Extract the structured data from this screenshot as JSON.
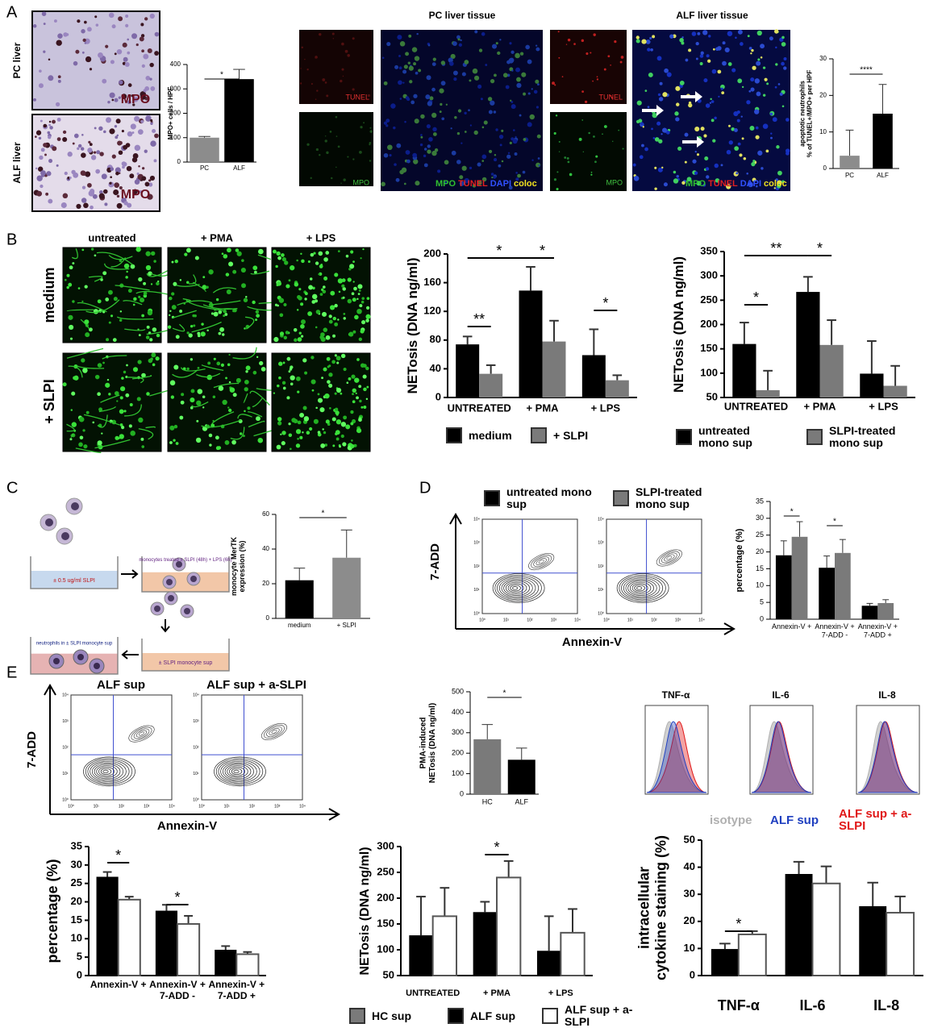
{
  "panels": [
    "A",
    "B",
    "C",
    "D",
    "E"
  ],
  "images": {
    "pc_liver": "PC liver",
    "alf_liver": "ALF liver",
    "mpo": "MPO",
    "pc_tissue": "PC liver tissue",
    "alf_tissue": "ALF liver tissue",
    "tunel": "TUNEL",
    "mpo_stain": "MPO",
    "merge": [
      "MPO",
      "TUNEL",
      "DAPI",
      "coloc"
    ],
    "b_cols": [
      "untreated",
      "+ PMA",
      "+ LPS"
    ],
    "b_rows": [
      "medium",
      "+ SLPI"
    ]
  },
  "diagram": {
    "step1": "± 0.5 ug/ml SLPI",
    "step2": "monocytes treated ± SLPI (48h) + LPS (6h)",
    "step3": "± SLPI monocyte sup",
    "step4": "neutrophils in ± SLPI monocyte sup"
  },
  "flow": {
    "x_label": "Annexin-V",
    "y_label": "7-ADD",
    "ticks": [
      "10⁰",
      "10¹",
      "10²",
      "10³",
      "10⁴"
    ],
    "e_titles": [
      "ALF sup",
      "ALF sup + a-SLPI"
    ]
  },
  "histograms": {
    "titles": [
      "TNF-α",
      "IL-6",
      "IL-8"
    ],
    "legend": [
      {
        "name": "isotype",
        "color": "#b0b0b0"
      },
      {
        "name": "ALF sup",
        "color": "#2040c0"
      },
      {
        "name": "ALF sup + a-SLPI",
        "color": "#e01818"
      }
    ]
  },
  "legend_extra": {
    "name": "HC sup",
    "color": "#7a7a7a"
  },
  "chart_data": [
    {
      "type": "bar",
      "y_label": "MPO+ cells / HPF",
      "categories": [
        "PC",
        "ALF"
      ],
      "values": [
        100,
        340
      ],
      "errors": [
        5,
        40
      ],
      "colors": [
        "#8c8c8c",
        "#000000"
      ],
      "ylim": [
        0,
        400
      ],
      "yticks": [
        0,
        100,
        200,
        300,
        400
      ],
      "annotations": [
        "*"
      ]
    },
    {
      "type": "bar",
      "y_label": [
        "apoptotic neutrophils",
        "% of TUNEL+/MPO+ per HPF"
      ],
      "categories": [
        "PC",
        "ALF"
      ],
      "values": [
        3.5,
        15
      ],
      "errors": [
        7,
        8
      ],
      "colors": [
        "#8c8c8c",
        "#000000"
      ],
      "ylim": [
        0,
        30
      ],
      "yticks": [
        0,
        10,
        20,
        30
      ],
      "annotations": [
        "****"
      ]
    },
    {
      "type": "bar",
      "y_label": "NETosis (DNA ng/ml)",
      "categories": [
        "UNTREATED",
        "+ PMA",
        "+ LPS"
      ],
      "series": [
        {
          "name": "medium",
          "color": "#000000",
          "values": [
            74,
            149,
            59
          ],
          "errors": [
            11,
            33,
            36
          ]
        },
        {
          "name": "+ SLPI",
          "color": "#7a7a7a",
          "values": [
            33,
            78,
            24
          ],
          "errors": [
            12,
            29,
            7
          ]
        }
      ],
      "ylim": [
        0,
        200
      ],
      "yticks": [
        0,
        40,
        80,
        120,
        160,
        200
      ],
      "annotations": [
        "**",
        "*",
        "*",
        "*"
      ]
    },
    {
      "type": "bar",
      "y_label": "NETosis (DNA ng/ml)",
      "categories": [
        "UNTREATED",
        "+ PMA",
        "+ LPS"
      ],
      "series": [
        {
          "name": "untreated mono sup",
          "color": "#000000",
          "values": [
            160,
            267,
            99
          ],
          "errors": [
            44,
            31,
            67
          ]
        },
        {
          "name": "SLPI-treated mono sup",
          "color": "#7a7a7a",
          "values": [
            65,
            158,
            74
          ],
          "errors": [
            40,
            51,
            41
          ]
        }
      ],
      "ylim": [
        50,
        350
      ],
      "yticks": [
        50,
        100,
        150,
        200,
        250,
        300,
        350
      ],
      "annotations": [
        "*",
        "**",
        "*"
      ]
    },
    {
      "type": "bar",
      "y_label": [
        "monocyte MerTK",
        "expression (%)"
      ],
      "categories": [
        "medium",
        "+ SLPI"
      ],
      "values": [
        22,
        35
      ],
      "errors": [
        7,
        16
      ],
      "colors": [
        "#000000",
        "#8c8c8c"
      ],
      "ylim": [
        0,
        60
      ],
      "yticks": [
        0,
        20,
        40,
        60
      ],
      "annotations": [
        "*"
      ]
    },
    {
      "type": "bar",
      "y_label": "percentage (%)",
      "categories": [
        [
          "Annexin-V +"
        ],
        [
          "Annexin-V +",
          "7-ADD -"
        ],
        [
          "Annexin-V +",
          "7-ADD +"
        ]
      ],
      "series": [
        {
          "name": "untreated mono sup",
          "color": "#000000",
          "values": [
            19,
            15.3,
            4
          ],
          "errors": [
            4.3,
            3.5,
            0.7
          ]
        },
        {
          "name": "SLPI-treated mono sup",
          "color": "#7a7a7a",
          "values": [
            24.5,
            19.7,
            4.8
          ],
          "errors": [
            4.5,
            4,
            1
          ]
        }
      ],
      "ylim": [
        0,
        35
      ],
      "yticks": [
        0,
        5,
        10,
        15,
        20,
        25,
        30,
        35
      ],
      "annotations": [
        "*",
        "*"
      ]
    },
    {
      "type": "bar",
      "y_label": [
        "PMA-induced",
        "NETosis (DNA ng/ml)"
      ],
      "categories": [
        "HC",
        "ALF"
      ],
      "values": [
        268,
        168
      ],
      "errors": [
        72,
        57
      ],
      "colors": [
        "#7a7a7a",
        "#000000"
      ],
      "ylim": [
        0,
        500
      ],
      "yticks": [
        0,
        100,
        200,
        300,
        400,
        500
      ],
      "annotations": [
        "*"
      ]
    },
    {
      "type": "bar",
      "y_label": "percentage (%)",
      "categories": [
        [
          "Annexin-V +"
        ],
        [
          "Annexin-V +",
          "7-ADD -"
        ],
        [
          "Annexin-V +",
          "7-ADD +"
        ]
      ],
      "series": [
        {
          "name": "ALF sup",
          "color": "#000000",
          "values": [
            26.8,
            17.6,
            7
          ],
          "errors": [
            1.3,
            1.6,
            1
          ]
        },
        {
          "name": "ALF sup + a-SLPI",
          "color": "#ffffff",
          "values": [
            20.6,
            14,
            5.8
          ],
          "errors": [
            0.8,
            2.2,
            0.6
          ]
        }
      ],
      "ylim": [
        0,
        35
      ],
      "yticks": [
        0,
        5,
        10,
        15,
        20,
        25,
        30,
        35
      ],
      "annotations": [
        "*",
        "*"
      ]
    },
    {
      "type": "bar",
      "y_label": "NETosis (DNA ng/ml)",
      "categories": [
        "UNTREATED",
        "+ PMA",
        "+ LPS"
      ],
      "series": [
        {
          "name": "ALF sup",
          "color": "#000000",
          "values": [
            128,
            173,
            98
          ],
          "errors": [
            75,
            20,
            67
          ]
        },
        {
          "name": "ALF sup + a-SLPI",
          "color": "#ffffff",
          "values": [
            165,
            240,
            133
          ],
          "errors": [
            55,
            32,
            46
          ]
        }
      ],
      "ylim": [
        50,
        300
      ],
      "yticks": [
        50,
        100,
        150,
        200,
        250,
        300
      ],
      "annotations": [
        "*"
      ]
    },
    {
      "type": "bar",
      "y_label": [
        "intracellular",
        "cytokine staining (%)"
      ],
      "categories": [
        "TNF-α",
        "IL-6",
        "IL-8"
      ],
      "series": [
        {
          "name": "ALF sup",
          "color": "#000000",
          "values": [
            9.8,
            37.5,
            25.6
          ],
          "errors": [
            2,
            4.5,
            8.7
          ]
        },
        {
          "name": "ALF sup + a-SLPI",
          "color": "#ffffff",
          "values": [
            15.2,
            34,
            23.2
          ],
          "errors": [
            1.2,
            6.3,
            6
          ]
        }
      ],
      "ylim": [
        0,
        50
      ],
      "yticks": [
        0,
        10,
        20,
        30,
        40,
        50
      ],
      "annotations": [
        "*"
      ]
    }
  ]
}
